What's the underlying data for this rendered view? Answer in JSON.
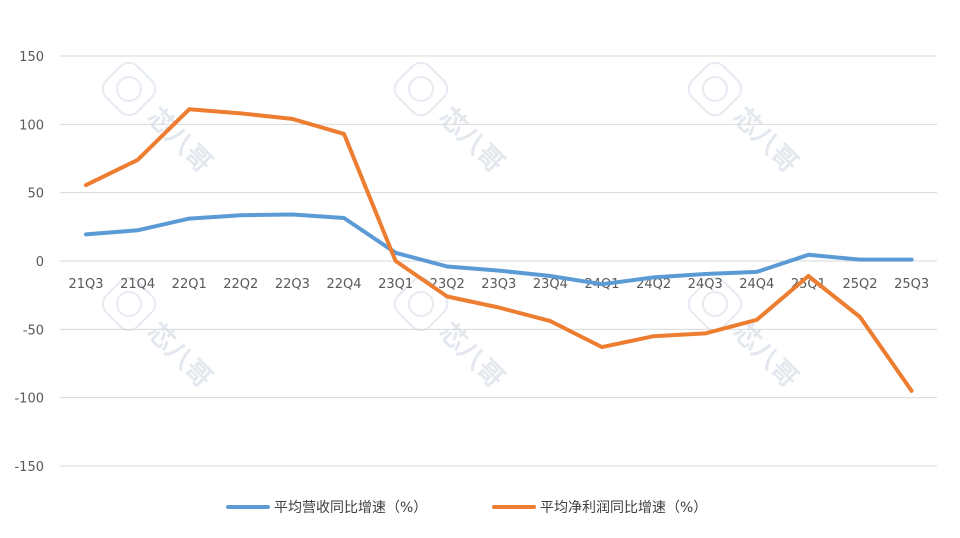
{
  "chart_data": {
    "type": "line",
    "title": "",
    "xlabel": "",
    "ylabel": "",
    "categories": [
      "21Q3",
      "21Q4",
      "22Q1",
      "22Q2",
      "22Q3",
      "22Q4",
      "23Q1",
      "23Q2",
      "23Q3",
      "23Q4",
      "24Q1",
      "24Q2",
      "24Q3",
      "24Q4",
      "25Q1",
      "25Q2",
      "25Q3"
    ],
    "ylim": [
      -150,
      150
    ],
    "yticks": [
      150,
      100,
      50,
      0,
      -50,
      -100,
      -150
    ],
    "grid": true,
    "legend_position": "bottom",
    "series": [
      {
        "name": "平均营收同比增速（%）",
        "color": "#5b9bd5",
        "values": [
          19.5,
          22.5,
          31,
          33.5,
          34,
          31.5,
          6,
          -4,
          -7,
          -11,
          -17,
          -12,
          -9.5,
          -8,
          4.5,
          1,
          1
        ]
      },
      {
        "name": "平均净利润同比增速（%）",
        "color": "#ed7d31",
        "values": [
          55.5,
          74,
          111,
          108,
          104,
          93,
          0,
          -26,
          -34,
          -44,
          -63,
          -55,
          -53,
          -43,
          -11,
          -41,
          -95
        ]
      }
    ]
  },
  "watermark": {
    "text": "芯八哥"
  }
}
